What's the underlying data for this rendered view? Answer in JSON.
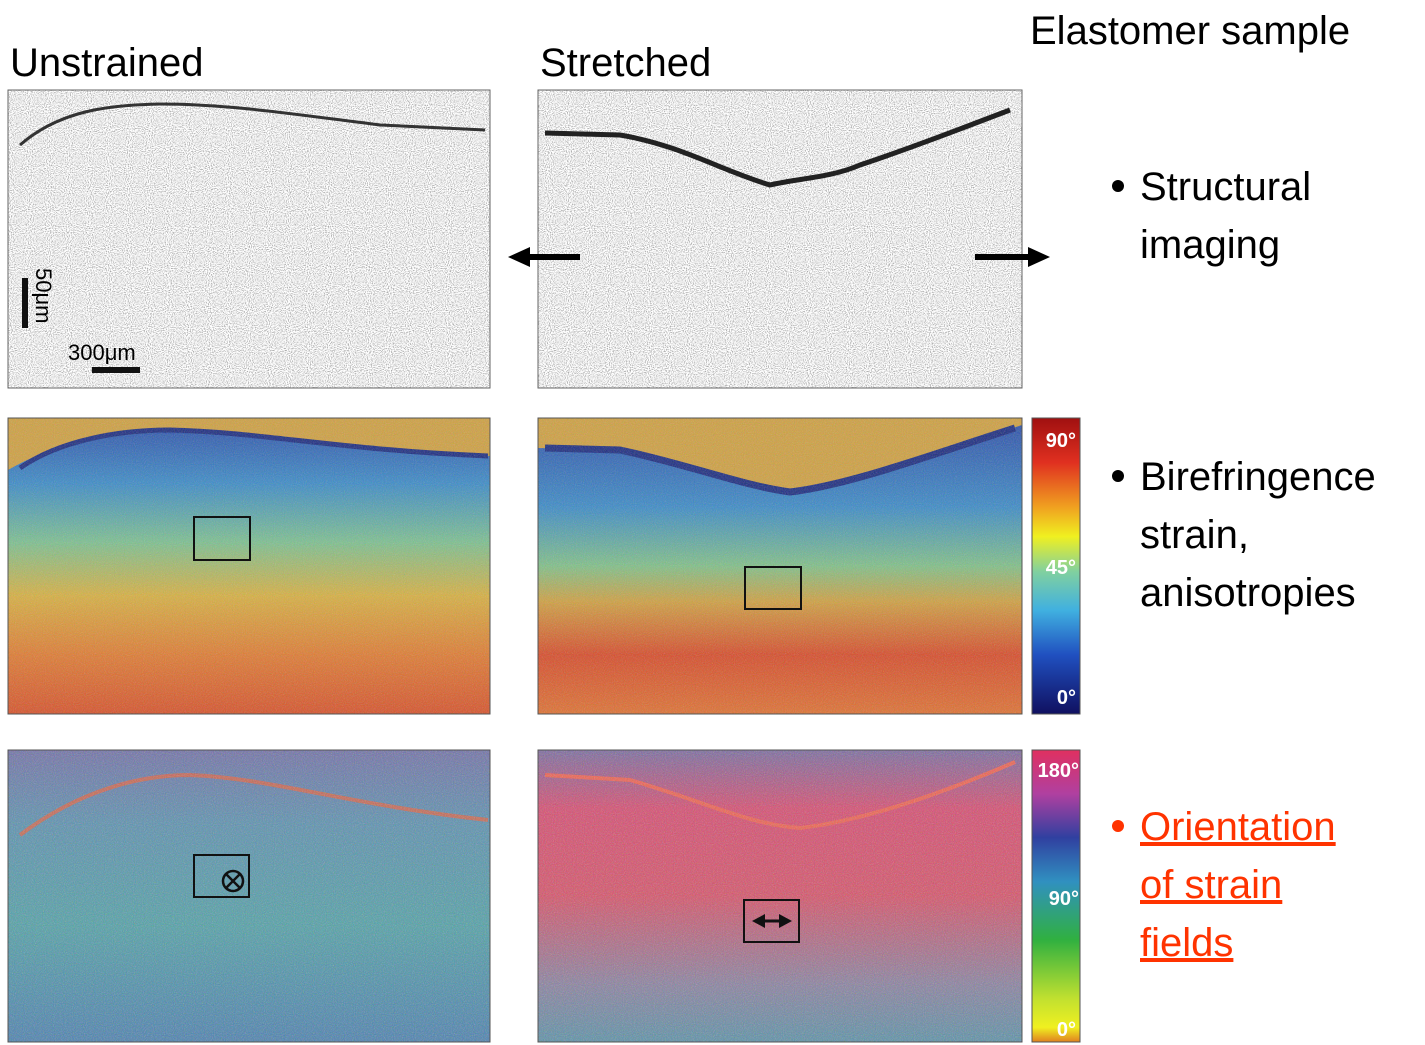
{
  "header": {
    "title": "Elastomer sample",
    "columns": [
      "Unstrained",
      "Stretched"
    ]
  },
  "scale_bars": {
    "vertical": "50μm",
    "horizontal": "300μm"
  },
  "colorbars": [
    {
      "labels": [
        "90°",
        "45°",
        "0°"
      ]
    },
    {
      "labels": [
        "180°",
        "90°",
        "0°"
      ]
    }
  ],
  "bullets": [
    {
      "lines": [
        "Structural",
        "imaging"
      ]
    },
    {
      "lines": [
        "Birefringence",
        "strain,",
        "anisotropies"
      ]
    },
    {
      "lines": [
        "Orientation",
        "of strain",
        "fields"
      ]
    }
  ]
}
